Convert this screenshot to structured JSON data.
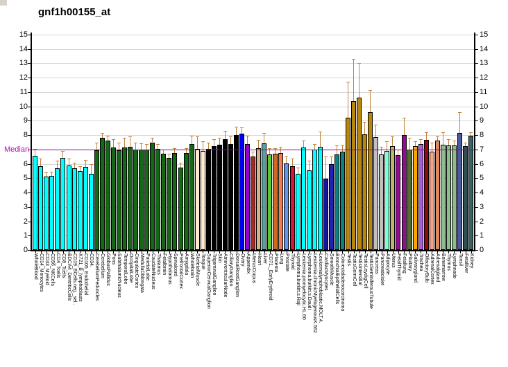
{
  "title": "gnf1h00155_at",
  "chart_data": {
    "type": "bar",
    "title": "gnf1h00155_at",
    "xlabel": "",
    "ylabel": "",
    "ylim": [
      0,
      15
    ],
    "yticks": [
      0,
      1,
      2,
      3,
      4,
      5,
      6,
      7,
      8,
      9,
      10,
      11,
      12,
      13,
      14,
      15
    ],
    "grid": true,
    "legend": "none",
    "median": {
      "value": 7,
      "label": "Median"
    },
    "categories": [
      "WholeBlood",
      "CD14_Monocytes",
      "CD33_Myeloid",
      "CD56_NKCells",
      "CD4_Tcells",
      "CD8_Tcells",
      "BDCA4_DentriticCells",
      "CD19_BCells.neg._sel..",
      "X721_B_lymphoblasts",
      "CD105_Endothelial",
      "CD34.",
      "CerebellumPeduncles",
      "Cerebellum",
      "GlobusPallidus",
      "Pons",
      "SubthalamicNucleus",
      "TemporalLobe",
      "OccipitalLobe",
      "CingulateCortex",
      "MedullaOblongata",
      "ParietalLobe",
      "CaudateNucleus",
      "Thalamus",
      "Fetalbrain",
      "Hypothalamus",
      "Spinalcord",
      "PrefrontalCortex",
      "Amygdala",
      "Wholebrain",
      "SkeletalMuscle",
      "Tongue",
      "SuperiorCervicalGanglion",
      "TrigeminalGanglion",
      "Skin",
      "AtrioventricularNode",
      "CiliaryGanglion",
      "DorsalRootGanglion",
      "Ovary",
      "Appendix",
      "UterusCorpus",
      "Heart",
      "Liver",
      "CD71._EarlyErythroid",
      "Placenta",
      "Lung",
      "Prostate",
      "Thyroid",
      "Lymphoma.burkitt.s.Raji",
      "Leukemia.promyelocytic.HL.60",
      "Lymphoma.burkitt.s.Daudi",
      "Leukemia.chronicMyelogenousK.562",
      "Leukemialymphoblastic.MOLT.4.",
      "CardiacMyocytes",
      "SmoothMuscle",
      "BronchialEpithelialCells",
      "Colorectaladenocarcinoma",
      "Testis",
      "TestisGermCell",
      "TestisIntersitial",
      "TestisLeydigCell",
      "TestisSeminiferousTubule",
      "Pancreas",
      "PancreaticIslet",
      "Adipocyte",
      "Uterus",
      "FetalThyroid",
      "Fetallung",
      "Pituitary",
      "Salivarygland",
      "Trachea",
      "OlfactoryBulb",
      "AdrenalCortex",
      "Adrenalgland",
      "Bonemarrow",
      "Thymus",
      "Lymphnode",
      "Tonsil",
      "Fetalliver",
      "Kidney"
    ],
    "values": [
      6.55,
      5.85,
      5.1,
      5.15,
      5.7,
      6.4,
      5.9,
      5.7,
      5.5,
      5.8,
      5.3,
      6.95,
      7.8,
      7.6,
      7.15,
      6.95,
      7.15,
      7.2,
      7.0,
      7.0,
      7.0,
      7.5,
      7.05,
      6.7,
      6.4,
      6.75,
      5.75,
      6.75,
      7.4,
      7.05,
      6.9,
      7.05,
      7.25,
      7.35,
      7.7,
      7.4,
      8.0,
      8.1,
      7.4,
      6.5,
      7.1,
      7.45,
      6.65,
      6.7,
      6.75,
      6.05,
      5.85,
      5.3,
      7.15,
      5.55,
      7.0,
      7.2,
      4.95,
      6.0,
      6.65,
      6.85,
      9.2,
      10.35,
      10.6,
      8.05,
      9.6,
      7.85,
      6.65,
      6.9,
      7.25,
      6.6,
      8.0,
      7.0,
      7.25,
      7.4,
      7.65,
      6.85,
      7.6,
      7.35,
      7.3,
      7.3,
      8.15,
      7.25,
      7.95
    ],
    "errors_high": [
      7.05,
      6.35,
      5.4,
      5.45,
      6.2,
      6.9,
      6.35,
      6.1,
      5.85,
      6.25,
      6.0,
      7.5,
      8.15,
      7.95,
      7.7,
      7.5,
      7.8,
      7.9,
      7.5,
      7.45,
      7.4,
      7.8,
      7.4,
      7.0,
      6.7,
      7.1,
      6.1,
      7.1,
      7.95,
      7.9,
      7.55,
      7.5,
      7.7,
      7.8,
      8.3,
      7.9,
      8.6,
      8.55,
      7.95,
      6.85,
      7.65,
      8.15,
      7.1,
      7.1,
      7.2,
      6.5,
      6.35,
      5.75,
      7.6,
      6.2,
      7.4,
      8.25,
      6.5,
      6.5,
      7.3,
      7.3,
      11.7,
      13.3,
      13.0,
      8.9,
      11.15,
      8.75,
      7.2,
      7.55,
      7.9,
      7.0,
      9.2,
      7.8,
      7.55,
      7.7,
      8.2,
      7.5,
      7.9,
      8.2,
      7.7,
      7.6,
      9.6,
      7.5,
      8.2
    ],
    "bar_colors": [
      "#00ffff",
      "#00ffff",
      "#00ffff",
      "#00ffff",
      "#00ffff",
      "#00ffff",
      "#00ffff",
      "#00ffff",
      "#00ffff",
      "#00ffff",
      "#00ffff",
      "#156815",
      "#156815",
      "#156815",
      "#156815",
      "#156815",
      "#156815",
      "#156815",
      "#156815",
      "#156815",
      "#156815",
      "#156815",
      "#156815",
      "#156815",
      "#156815",
      "#156815",
      "#156815",
      "#156815",
      "#156815",
      "#ffebcd",
      "#ffebcd",
      "#000000",
      "#000000",
      "#000000",
      "#000000",
      "#000000",
      "#000000",
      "#0000f5",
      "#9400d3",
      "#a52a2a",
      "#d2b48c",
      "#5f9ea0",
      "#5cc832",
      "#d2691e",
      "#f07c54",
      "#6495ed",
      "#dc143c",
      "#00ffff",
      "#00ffff",
      "#00ffff",
      "#00ffff",
      "#00ffff",
      "#16169b",
      "#2222b2",
      "#0f8080",
      "#0f8080",
      "#b8860b",
      "#b8860b",
      "#b8860b",
      "#b8860b",
      "#b8860b",
      "#bfbfbf",
      "#bfbfbf",
      "#7fffd4",
      "#bdb76b",
      "#8e0e8e",
      "#8e0e8e",
      "#556b2f",
      "#ffa500",
      "#a95edb",
      "#8f0a0a",
      "#efa48c",
      "#e08860",
      "#8fbc8f",
      "#8fbc8f",
      "#8fbc8f",
      "#4c5a9e",
      "#2f4f4f",
      "#3a6262"
    ],
    "colors": {
      "median_line": "#900090",
      "median_label": "#c000c0",
      "error_bar": "#c1823b",
      "grid": "#d6d6d6",
      "axis": "#000000",
      "plot_background": "#ffffff"
    }
  }
}
